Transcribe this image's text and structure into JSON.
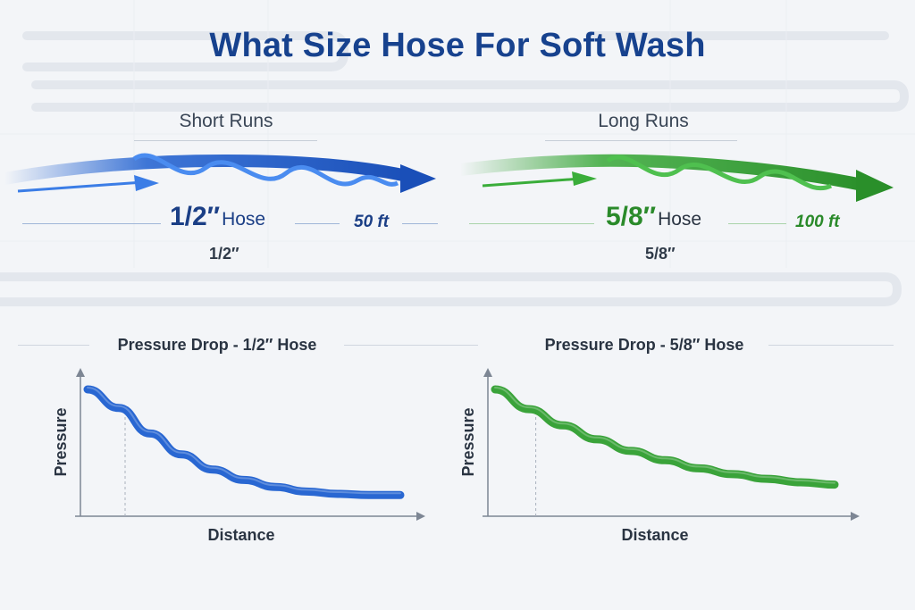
{
  "title": "What Size Hose For Soft Wash",
  "colors": {
    "title": "#17428e",
    "blue": "#1e5fd0",
    "green": "#2f9e2f",
    "text": "#2a3442"
  },
  "left": {
    "run_label": "Short Runs",
    "size": "1/2″",
    "size_word": "Hose",
    "length": "50 ft",
    "size_sub": "1/2″"
  },
  "right": {
    "run_label": "Long Runs",
    "size": "5/8″",
    "size_word": "Hose",
    "length": "100 ft",
    "size_sub": "5/8″"
  },
  "chart_data": [
    {
      "type": "line",
      "title": "Pressure Drop - 1/2″ Hose",
      "xlabel": "Distance",
      "ylabel": "Pressure",
      "grid": false,
      "color": "#1e5fd0",
      "x": [
        0,
        0.1,
        0.2,
        0.3,
        0.4,
        0.5,
        0.6,
        0.7,
        0.8,
        0.9,
        1.0
      ],
      "y": [
        1.0,
        0.84,
        0.62,
        0.44,
        0.31,
        0.22,
        0.16,
        0.12,
        0.1,
        0.09,
        0.09
      ]
    },
    {
      "type": "line",
      "title": "Pressure Drop - 5/8″ Hose",
      "xlabel": "Distance",
      "ylabel": "Pressure",
      "grid": false,
      "color": "#2f9e2f",
      "x": [
        0,
        0.1,
        0.2,
        0.3,
        0.4,
        0.5,
        0.6,
        0.7,
        0.8,
        0.9,
        1.0
      ],
      "y": [
        1.0,
        0.83,
        0.69,
        0.57,
        0.47,
        0.39,
        0.32,
        0.27,
        0.23,
        0.2,
        0.18
      ]
    }
  ]
}
